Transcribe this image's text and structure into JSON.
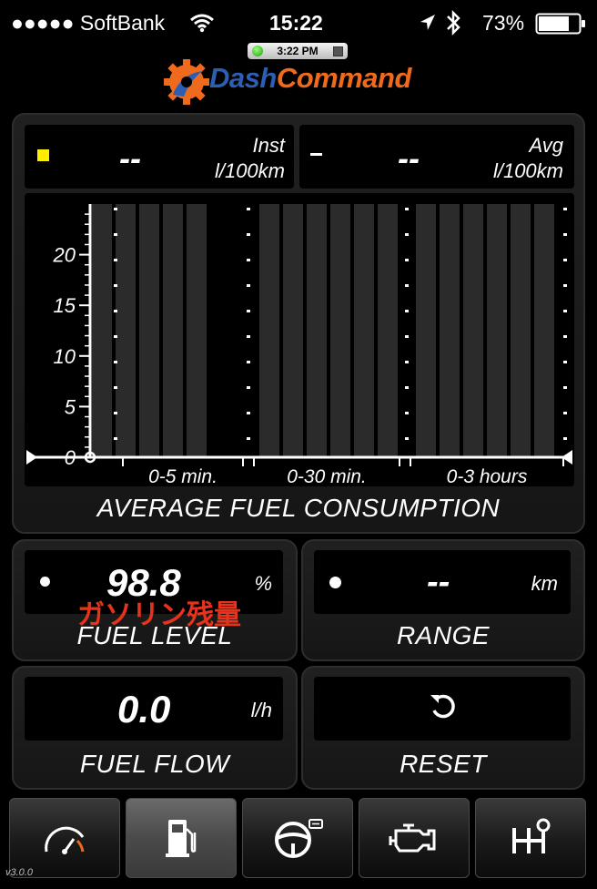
{
  "status_bar": {
    "carrier": "●●●●● SoftBank",
    "time": "15:22",
    "battery": "73%"
  },
  "header": {
    "clock": "3:22 PM",
    "logo_part1": "Dash",
    "logo_part2": "Command"
  },
  "chart_data": {
    "type": "bar",
    "categories": [
      "0-5 min.",
      "0-30 min.",
      "0-3 hours"
    ],
    "values": [
      null,
      null,
      null
    ],
    "title": "AVERAGE FUEL CONSUMPTION",
    "y_ticks": [
      "0",
      "5",
      "10",
      "15",
      "20"
    ],
    "ylim": [
      0,
      25
    ],
    "grid": false
  },
  "fuel_consumption": {
    "inst_value": "--",
    "inst_label": "Inst",
    "inst_unit": "l/100km",
    "avg_value": "--",
    "avg_label": "Avg",
    "avg_unit": "l/100km",
    "title": "AVERAGE FUEL CONSUMPTION"
  },
  "fuel_level": {
    "value": "98.8",
    "unit": "%",
    "annotation": "ガソリン残量",
    "label": "FUEL LEVEL"
  },
  "range": {
    "value": "--",
    "unit": "km",
    "label": "RANGE"
  },
  "fuel_flow": {
    "value": "0.0",
    "unit": "l/h",
    "label": "FUEL FLOW"
  },
  "reset": {
    "label": "RESET"
  },
  "tab_bar": {
    "tabs": [
      {
        "icon": "speedometer-icon",
        "active": false
      },
      {
        "icon": "fuel-pump-icon",
        "active": true
      },
      {
        "icon": "steering-wheel-icon",
        "active": false
      },
      {
        "icon": "engine-icon",
        "active": false
      },
      {
        "icon": "gear-shift-icon",
        "active": false
      }
    ],
    "version": "v3.0.0"
  },
  "colors": {
    "accent_orange": "#f06a1d",
    "accent_blue": "#2c5fb3",
    "indicator_yellow": "#ffee00",
    "annotation_red": "#e8331c"
  }
}
